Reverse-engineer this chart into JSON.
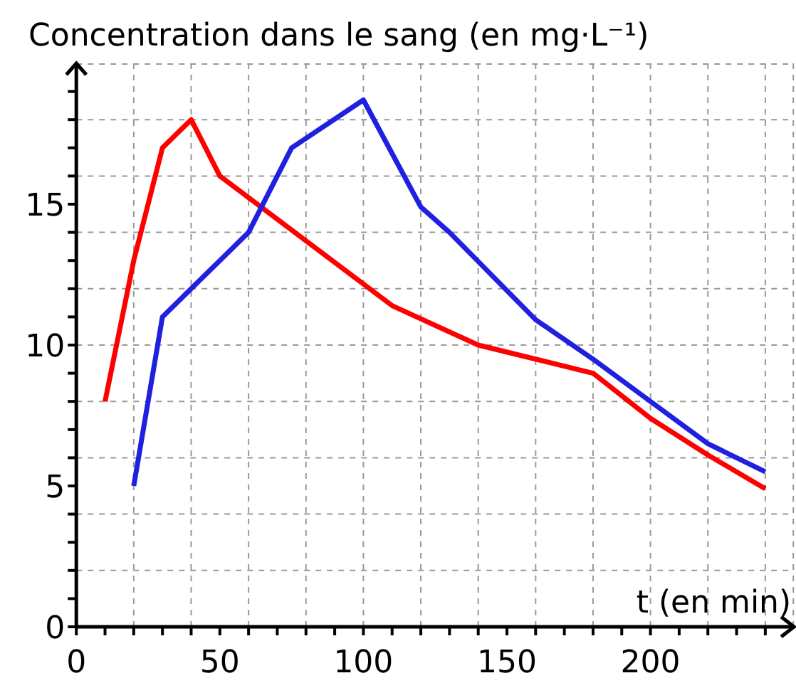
{
  "chart_data": {
    "type": "line",
    "ylabel": "Concentration dans le sang (en mg·L⁻¹)",
    "xlabel": "t (en min)",
    "xlim": [
      0,
      250
    ],
    "ylim": [
      0,
      20
    ],
    "xticks": [
      0,
      {
        "value": 10,
        "label": null
      },
      {
        "value": 20,
        "label": null
      },
      {
        "value": 30,
        "label": null
      },
      {
        "value": 40,
        "label": null
      },
      50,
      {
        "value": 60,
        "label": null
      },
      {
        "value": 70,
        "label": null
      },
      {
        "value": 80,
        "label": null
      },
      {
        "value": 90,
        "label": null
      },
      100,
      {
        "value": 110,
        "label": null
      },
      {
        "value": 120,
        "label": null
      },
      {
        "value": 130,
        "label": null
      },
      {
        "value": 140,
        "label": null
      },
      150,
      {
        "value": 160,
        "label": null
      },
      {
        "value": 170,
        "label": null
      },
      {
        "value": 180,
        "label": null
      },
      {
        "value": 190,
        "label": null
      },
      200,
      {
        "value": 210,
        "label": null
      },
      {
        "value": 220,
        "label": null
      },
      {
        "value": 230,
        "label": null
      },
      {
        "value": 240,
        "label": null
      }
    ],
    "yticks": [
      0,
      {
        "value": 1,
        "label": null
      },
      {
        "value": 2,
        "label": null
      },
      {
        "value": 3,
        "label": null
      },
      {
        "value": 4,
        "label": null
      },
      5,
      {
        "value": 6,
        "label": null
      },
      {
        "value": 7,
        "label": null
      },
      {
        "value": 8,
        "label": null
      },
      {
        "value": 9,
        "label": null
      },
      10,
      {
        "value": 11,
        "label": null
      },
      {
        "value": 12,
        "label": null
      },
      {
        "value": 13,
        "label": null
      },
      {
        "value": 14,
        "label": null
      },
      15,
      {
        "value": 16,
        "label": null
      },
      {
        "value": 17,
        "label": null
      },
      {
        "value": 18,
        "label": null
      },
      {
        "value": 19,
        "label": null
      }
    ],
    "grid": true,
    "series": [
      {
        "color": "#ff0000",
        "x": [
          10,
          20,
          30,
          40,
          50,
          110,
          140,
          180,
          200,
          220,
          240
        ],
        "values": [
          8,
          13,
          17,
          18,
          16,
          11.4,
          10,
          9,
          7.4,
          6.1,
          4.9
        ]
      },
      {
        "color": "#2020e0",
        "x": [
          20,
          30,
          40,
          50,
          60,
          75,
          100,
          120,
          130,
          160,
          180,
          200,
          220,
          240
        ],
        "values": [
          5,
          11,
          12,
          13,
          14,
          17,
          18.7,
          14.9,
          14,
          10.9,
          9.5,
          8,
          6.5,
          5.5
        ]
      }
    ]
  }
}
